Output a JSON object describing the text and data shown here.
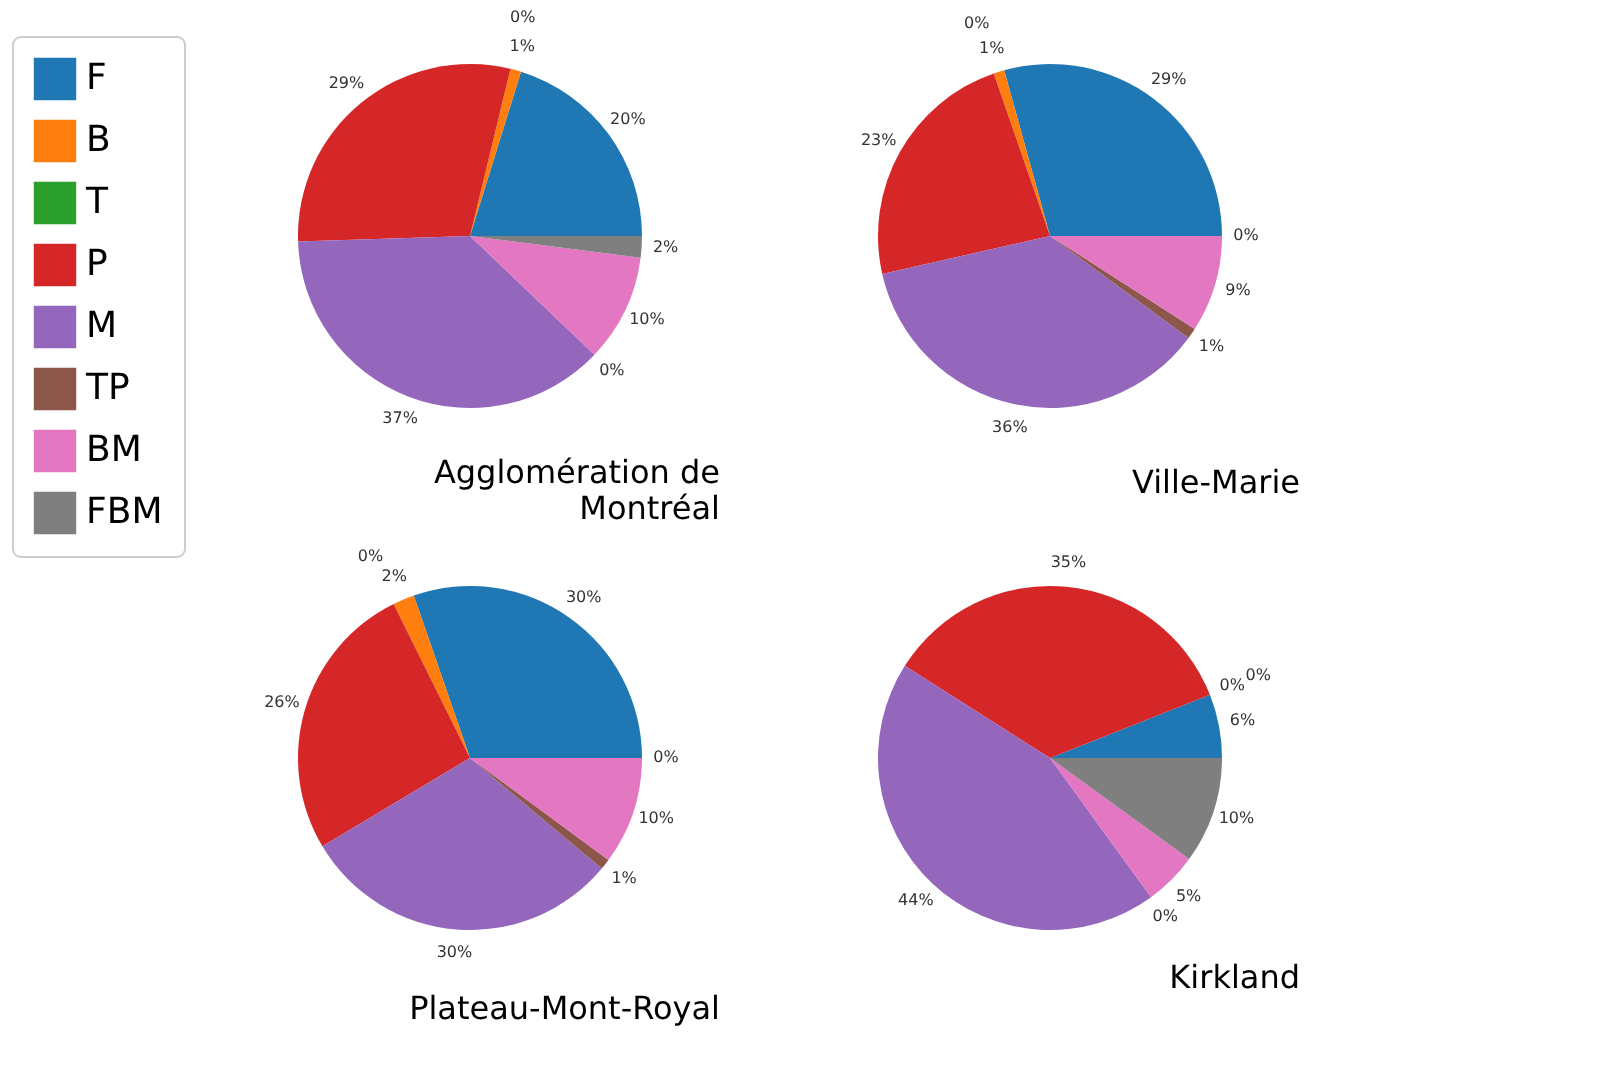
{
  "chart_data": [
    {
      "type": "pie",
      "title": "Agglomération de\nMontréal",
      "legend": "left",
      "categories": [
        "F",
        "B",
        "T",
        "P",
        "M",
        "TP",
        "BM",
        "FBM"
      ],
      "values": [
        20,
        1,
        0,
        29,
        37,
        0,
        10,
        2
      ],
      "value_labels": [
        "20%",
        "1%",
        "0%",
        "29%",
        "37%",
        "0%",
        "10%",
        "2%"
      ],
      "colors": [
        "#1f77b4",
        "#ff7f0e",
        "#2ca02c",
        "#d62728",
        "#9467bd",
        "#8c564b",
        "#e377c2",
        "#7f7f7f"
      ]
    },
    {
      "type": "pie",
      "title": "Ville-Marie",
      "categories": [
        null,
        null,
        null,
        null,
        null,
        null,
        null,
        null
      ],
      "values": [
        29,
        1,
        0,
        23,
        36,
        1,
        9,
        0
      ],
      "value_labels": [
        "29%",
        "1%",
        "0%",
        "23%",
        "36%",
        "1%",
        "9%",
        "0%"
      ],
      "colors": [
        "#1f77b4",
        "#ff7f0e",
        "#2ca02c",
        "#d62728",
        "#9467bd",
        "#8c564b",
        "#e377c2",
        "#7f7f7f"
      ]
    },
    {
      "type": "pie",
      "title": "Plateau-Mont-Royal",
      "categories": [
        null,
        null,
        null,
        null,
        null,
        null,
        null,
        null
      ],
      "values": [
        30,
        2,
        0,
        26,
        30,
        1,
        10,
        0
      ],
      "value_labels": [
        "30%",
        "2%",
        "0%",
        "26%",
        "30%",
        "1%",
        "10%",
        "0%"
      ],
      "colors": [
        "#1f77b4",
        "#ff7f0e",
        "#2ca02c",
        "#d62728",
        "#9467bd",
        "#8c564b",
        "#e377c2",
        "#7f7f7f"
      ]
    },
    {
      "type": "pie",
      "title": "Kirkland",
      "categories": [
        null,
        null,
        null,
        null,
        null,
        null,
        null,
        null
      ],
      "values": [
        6,
        0,
        0,
        35,
        44,
        0,
        5,
        10
      ],
      "value_labels": [
        "6%",
        "0%",
        "0%",
        "35%",
        "44%",
        "0%",
        "5%",
        "10%"
      ],
      "colors": [
        "#1f77b4",
        "#ff7f0e",
        "#2ca02c",
        "#d62728",
        "#9467bd",
        "#8c564b",
        "#e377c2",
        "#7f7f7f"
      ]
    }
  ]
}
